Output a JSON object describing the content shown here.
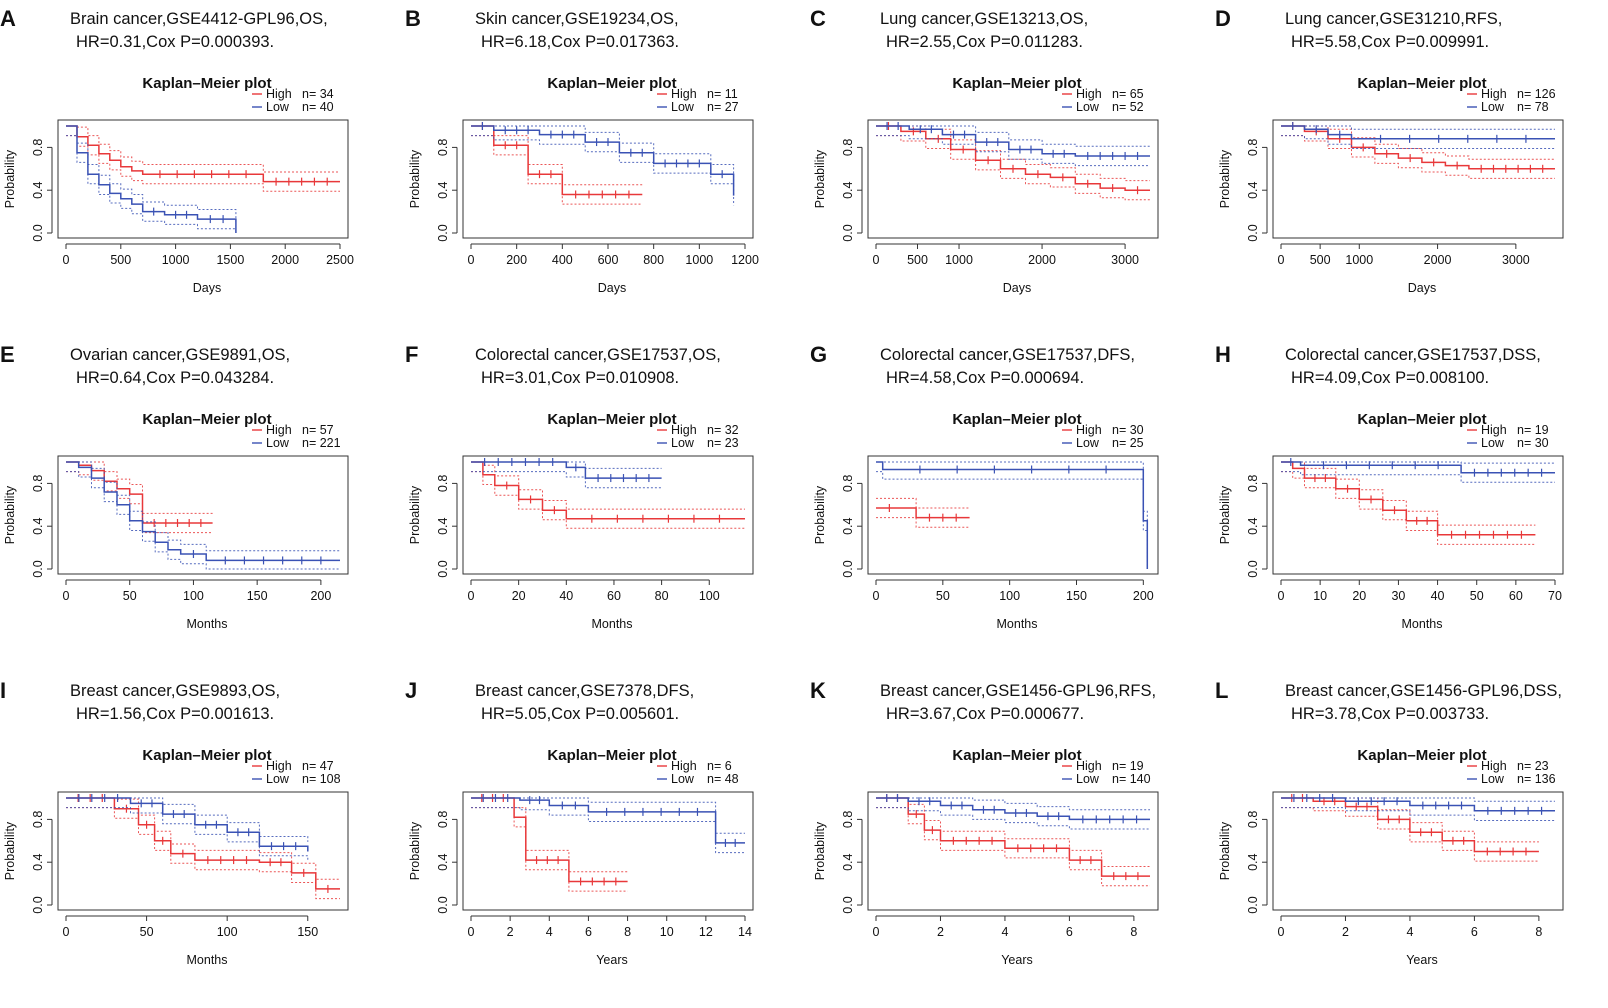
{
  "colors": {
    "high": "#e8383a",
    "low": "#3a52b4",
    "frame": "#333333"
  },
  "chart_data": [
    {
      "letter": "A",
      "type": "line",
      "caption_line1": "Brain cancer,GSE4412-GPL96,OS,",
      "caption_line2": "HR=0.31,Cox P=0.000393.",
      "title": "Kaplan–Meier plot",
      "xlabel": "Days",
      "ylabel": "Probability",
      "xlim": [
        0,
        2500
      ],
      "ylim": [
        0,
        1
      ],
      "xticks": [
        0,
        500,
        1000,
        1500,
        2000,
        2500
      ],
      "yticks": [
        0.0,
        0.4,
        0.8
      ],
      "series": [
        {
          "name": "High",
          "n_label": "n= 34",
          "x": [
            0,
            100,
            200,
            300,
            400,
            500,
            600,
            700,
            1800,
            2500
          ],
          "y": [
            1.0,
            0.9,
            0.82,
            0.74,
            0.68,
            0.62,
            0.58,
            0.55,
            0.48,
            0.48
          ]
        },
        {
          "name": "Low",
          "n_label": "n= 40",
          "x": [
            0,
            100,
            200,
            300,
            400,
            500,
            600,
            700,
            900,
            1200,
            1550
          ],
          "y": [
            1.0,
            0.75,
            0.55,
            0.45,
            0.37,
            0.32,
            0.27,
            0.2,
            0.17,
            0.13,
            0.0
          ]
        }
      ]
    },
    {
      "letter": "B",
      "type": "line",
      "caption_line1": "Skin cancer,GSE19234,OS,",
      "caption_line2": "HR=6.18,Cox P=0.017363.",
      "title": "Kaplan–Meier plot",
      "xlabel": "Days",
      "ylabel": "Probability",
      "xlim": [
        0,
        1200
      ],
      "ylim": [
        0,
        1
      ],
      "xticks": [
        0,
        200,
        400,
        600,
        800,
        1000,
        1200
      ],
      "yticks": [
        0.0,
        0.4,
        0.8
      ],
      "series": [
        {
          "name": "High",
          "n_label": "n= 11",
          "x": [
            0,
            100,
            250,
            400,
            750
          ],
          "y": [
            1.0,
            0.82,
            0.55,
            0.36,
            0.36
          ]
        },
        {
          "name": "Low",
          "n_label": "n= 27",
          "x": [
            0,
            100,
            300,
            500,
            650,
            800,
            1050,
            1150
          ],
          "y": [
            1.0,
            0.96,
            0.92,
            0.85,
            0.75,
            0.65,
            0.55,
            0.35
          ]
        }
      ]
    },
    {
      "letter": "C",
      "type": "line",
      "caption_line1": "Lung cancer,GSE13213,OS,",
      "caption_line2": "HR=2.55,Cox P=0.011283.",
      "title": "Kaplan–Meier plot",
      "xlabel": "Days",
      "ylabel": "Probability",
      "xlim": [
        0,
        3300
      ],
      "ylim": [
        0,
        1
      ],
      "xticks": [
        0,
        500,
        1000,
        2000,
        3000
      ],
      "yticks": [
        0.0,
        0.4,
        0.8
      ],
      "series": [
        {
          "name": "High",
          "n_label": "n= 65",
          "x": [
            0,
            300,
            600,
            900,
            1200,
            1500,
            1800,
            2100,
            2400,
            2700,
            3000,
            3300
          ],
          "y": [
            1.0,
            0.95,
            0.88,
            0.78,
            0.68,
            0.6,
            0.55,
            0.52,
            0.46,
            0.42,
            0.4,
            0.4
          ]
        },
        {
          "name": "Low",
          "n_label": "n= 52",
          "x": [
            0,
            400,
            800,
            1200,
            1600,
            2000,
            2400,
            3300
          ],
          "y": [
            1.0,
            0.97,
            0.92,
            0.85,
            0.78,
            0.74,
            0.72,
            0.72
          ]
        }
      ]
    },
    {
      "letter": "D",
      "type": "line",
      "caption_line1": "Lung cancer,GSE31210,RFS,",
      "caption_line2": "HR=5.58,Cox P=0.009991.",
      "title": "Kaplan–Meier plot",
      "xlabel": "Days",
      "ylabel": "Probability",
      "xlim": [
        0,
        3500
      ],
      "ylim": [
        0,
        1
      ],
      "xticks": [
        0,
        500,
        1000,
        2000,
        3000
      ],
      "yticks": [
        0.0,
        0.4,
        0.8
      ],
      "series": [
        {
          "name": "High",
          "n_label": "n= 126",
          "x": [
            0,
            300,
            600,
            900,
            1200,
            1500,
            1800,
            2100,
            2400,
            3500
          ],
          "y": [
            1.0,
            0.95,
            0.88,
            0.8,
            0.74,
            0.7,
            0.66,
            0.63,
            0.6,
            0.6
          ]
        },
        {
          "name": "Low",
          "n_label": "n= 78",
          "x": [
            0,
            300,
            600,
            900,
            3500
          ],
          "y": [
            1.0,
            0.97,
            0.92,
            0.88,
            0.88
          ]
        }
      ]
    },
    {
      "letter": "E",
      "type": "line",
      "caption_line1": "Ovarian cancer,GSE9891,OS,",
      "caption_line2": "HR=0.64,Cox P=0.043284.",
      "title": "Kaplan–Meier plot",
      "xlabel": "Months",
      "ylabel": "Probability",
      "xlim": [
        0,
        215
      ],
      "ylim": [
        0,
        1
      ],
      "xticks": [
        0,
        50,
        100,
        150,
        200
      ],
      "yticks": [
        0.0,
        0.4,
        0.8
      ],
      "series": [
        {
          "name": "High",
          "n_label": "n= 57",
          "x": [
            0,
            10,
            20,
            30,
            40,
            50,
            60,
            115
          ],
          "y": [
            1.0,
            0.97,
            0.92,
            0.82,
            0.75,
            0.7,
            0.43,
            0.43
          ]
        },
        {
          "name": "Low",
          "n_label": "n= 221",
          "x": [
            0,
            10,
            20,
            30,
            40,
            50,
            60,
            70,
            80,
            90,
            110,
            215
          ],
          "y": [
            1.0,
            0.95,
            0.85,
            0.72,
            0.6,
            0.45,
            0.35,
            0.25,
            0.18,
            0.14,
            0.08,
            0.08
          ]
        }
      ]
    },
    {
      "letter": "F",
      "type": "line",
      "caption_line1": "Colorectal cancer,GSE17537,OS,",
      "caption_line2": "HR=3.01,Cox P=0.010908.",
      "title": "Kaplan–Meier plot",
      "xlabel": "Months",
      "ylabel": "Probability",
      "xlim": [
        0,
        115
      ],
      "ylim": [
        0,
        1
      ],
      "xticks": [
        0,
        20,
        40,
        60,
        80,
        100
      ],
      "yticks": [
        0.0,
        0.4,
        0.8
      ],
      "series": [
        {
          "name": "High",
          "n_label": "n= 32",
          "x": [
            0,
            5,
            10,
            20,
            30,
            40,
            115
          ],
          "y": [
            1.0,
            0.88,
            0.78,
            0.65,
            0.55,
            0.47,
            0.47
          ]
        },
        {
          "name": "Low",
          "n_label": "n= 23",
          "x": [
            0,
            40,
            48,
            80
          ],
          "y": [
            1.0,
            0.95,
            0.85,
            0.85
          ]
        }
      ]
    },
    {
      "letter": "G",
      "type": "line",
      "caption_line1": "Colorectal cancer,GSE17537,DFS,",
      "caption_line2": "HR=4.58,Cox P=0.000694.",
      "title": "Kaplan–Meier plot",
      "xlabel": "Months",
      "ylabel": "Probability",
      "xlim": [
        0,
        205
      ],
      "ylim": [
        0,
        1
      ],
      "xticks": [
        0,
        50,
        100,
        150,
        200
      ],
      "yticks": [
        0.0,
        0.4,
        0.8
      ],
      "series": [
        {
          "name": "High",
          "n_label": "n= 30",
          "x": [
            0,
            20,
            30,
            70
          ],
          "y": [
            0.57,
            0.57,
            0.48,
            0.48
          ]
        },
        {
          "name": "Low",
          "n_label": "n= 25",
          "x": [
            0,
            5,
            200,
            203
          ],
          "y": [
            1.0,
            0.93,
            0.45,
            0.0
          ]
        }
      ]
    },
    {
      "letter": "H",
      "type": "line",
      "caption_line1": "Colorectal cancer,GSE17537,DSS,",
      "caption_line2": "HR=4.09,Cox P=0.008100.",
      "title": "Kaplan–Meier plot",
      "xlabel": "Months",
      "ylabel": "Probability",
      "xlim": [
        0,
        70
      ],
      "ylim": [
        0,
        1
      ],
      "xticks": [
        0,
        10,
        20,
        30,
        40,
        50,
        60,
        70
      ],
      "yticks": [
        0.0,
        0.4,
        0.8
      ],
      "series": [
        {
          "name": "High",
          "n_label": "n= 19",
          "x": [
            0,
            3,
            6,
            14,
            20,
            26,
            32,
            40,
            65
          ],
          "y": [
            1.0,
            0.94,
            0.85,
            0.75,
            0.65,
            0.55,
            0.45,
            0.32,
            0.32
          ]
        },
        {
          "name": "Low",
          "n_label": "n= 30",
          "x": [
            0,
            5,
            46,
            70
          ],
          "y": [
            1.0,
            0.97,
            0.9,
            0.9
          ]
        }
      ]
    },
    {
      "letter": "I",
      "type": "line",
      "caption_line1": "Breast cancer,GSE9893,OS,",
      "caption_line2": "HR=1.56,Cox P=0.001613.",
      "title": "Kaplan–Meier plot",
      "xlabel": "Months",
      "ylabel": "Probability",
      "xlim": [
        0,
        170
      ],
      "ylim": [
        0,
        1
      ],
      "xticks": [
        0,
        50,
        100,
        150
      ],
      "yticks": [
        0.0,
        0.4,
        0.8
      ],
      "series": [
        {
          "name": "High",
          "n_label": "n= 47",
          "x": [
            0,
            30,
            45,
            55,
            65,
            80,
            120,
            140,
            155,
            170
          ],
          "y": [
            1.0,
            0.9,
            0.75,
            0.6,
            0.48,
            0.42,
            0.4,
            0.3,
            0.15,
            0.15
          ]
        },
        {
          "name": "Low",
          "n_label": "n= 108",
          "x": [
            0,
            40,
            60,
            80,
            100,
            120,
            150
          ],
          "y": [
            1.0,
            0.95,
            0.85,
            0.75,
            0.68,
            0.55,
            0.5
          ]
        }
      ]
    },
    {
      "letter": "J",
      "type": "line",
      "caption_line1": "Breast cancer,GSE7378,DFS,",
      "caption_line2": "HR=5.05,Cox P=0.005601.",
      "title": "Kaplan–Meier plot",
      "xlabel": "Years",
      "ylabel": "Probability",
      "xlim": [
        0,
        14
      ],
      "ylim": [
        0,
        1
      ],
      "xticks": [
        0,
        2,
        4,
        6,
        8,
        10,
        12,
        14
      ],
      "yticks": [
        0.0,
        0.4,
        0.8
      ],
      "series": [
        {
          "name": "High",
          "n_label": "n= 6",
          "x": [
            0,
            2.2,
            2.8,
            5,
            8
          ],
          "y": [
            1.0,
            0.82,
            0.42,
            0.22,
            0.22
          ]
        },
        {
          "name": "Low",
          "n_label": "n= 48",
          "x": [
            0,
            2.5,
            4,
            6,
            12.5,
            14
          ],
          "y": [
            1.0,
            0.98,
            0.93,
            0.87,
            0.58,
            0.58
          ]
        }
      ]
    },
    {
      "letter": "K",
      "type": "line",
      "caption_line1": "Breast cancer,GSE1456-GPL96,RFS,",
      "caption_line2": "HR=3.67,Cox P=0.000677.",
      "title": "Kaplan–Meier plot",
      "xlabel": "Years",
      "ylabel": "Probability",
      "xlim": [
        0,
        8.5
      ],
      "ylim": [
        0,
        1
      ],
      "xticks": [
        0,
        2,
        4,
        6,
        8
      ],
      "yticks": [
        0.0,
        0.4,
        0.8
      ],
      "series": [
        {
          "name": "High",
          "n_label": "n= 19",
          "x": [
            0,
            1,
            1.5,
            2,
            4,
            6,
            7,
            8.5
          ],
          "y": [
            1.0,
            0.85,
            0.7,
            0.6,
            0.53,
            0.42,
            0.27,
            0.27
          ]
        },
        {
          "name": "Low",
          "n_label": "n= 140",
          "x": [
            0,
            1,
            2,
            3,
            4,
            5,
            6,
            8.5
          ],
          "y": [
            1.0,
            0.97,
            0.93,
            0.89,
            0.86,
            0.83,
            0.8,
            0.8
          ]
        }
      ]
    },
    {
      "letter": "L",
      "type": "line",
      "caption_line1": "Breast cancer,GSE1456-GPL96,DSS,",
      "caption_line2": "HR=3.78,Cox P=0.003733.",
      "title": "Kaplan–Meier plot",
      "xlabel": "Years",
      "ylabel": "Probability",
      "xlim": [
        0,
        8.5
      ],
      "ylim": [
        0,
        1
      ],
      "xticks": [
        0,
        2,
        4,
        6,
        8
      ],
      "yticks": [
        0.0,
        0.4,
        0.8
      ],
      "series": [
        {
          "name": "High",
          "n_label": "n= 23",
          "x": [
            0,
            1,
            2,
            3,
            4,
            5,
            6,
            8
          ],
          "y": [
            1.0,
            0.97,
            0.92,
            0.8,
            0.68,
            0.6,
            0.5,
            0.5
          ]
        },
        {
          "name": "Low",
          "n_label": "n= 136",
          "x": [
            0,
            2,
            4,
            6,
            8.5
          ],
          "y": [
            1.0,
            0.97,
            0.93,
            0.88,
            0.88
          ]
        }
      ]
    }
  ]
}
